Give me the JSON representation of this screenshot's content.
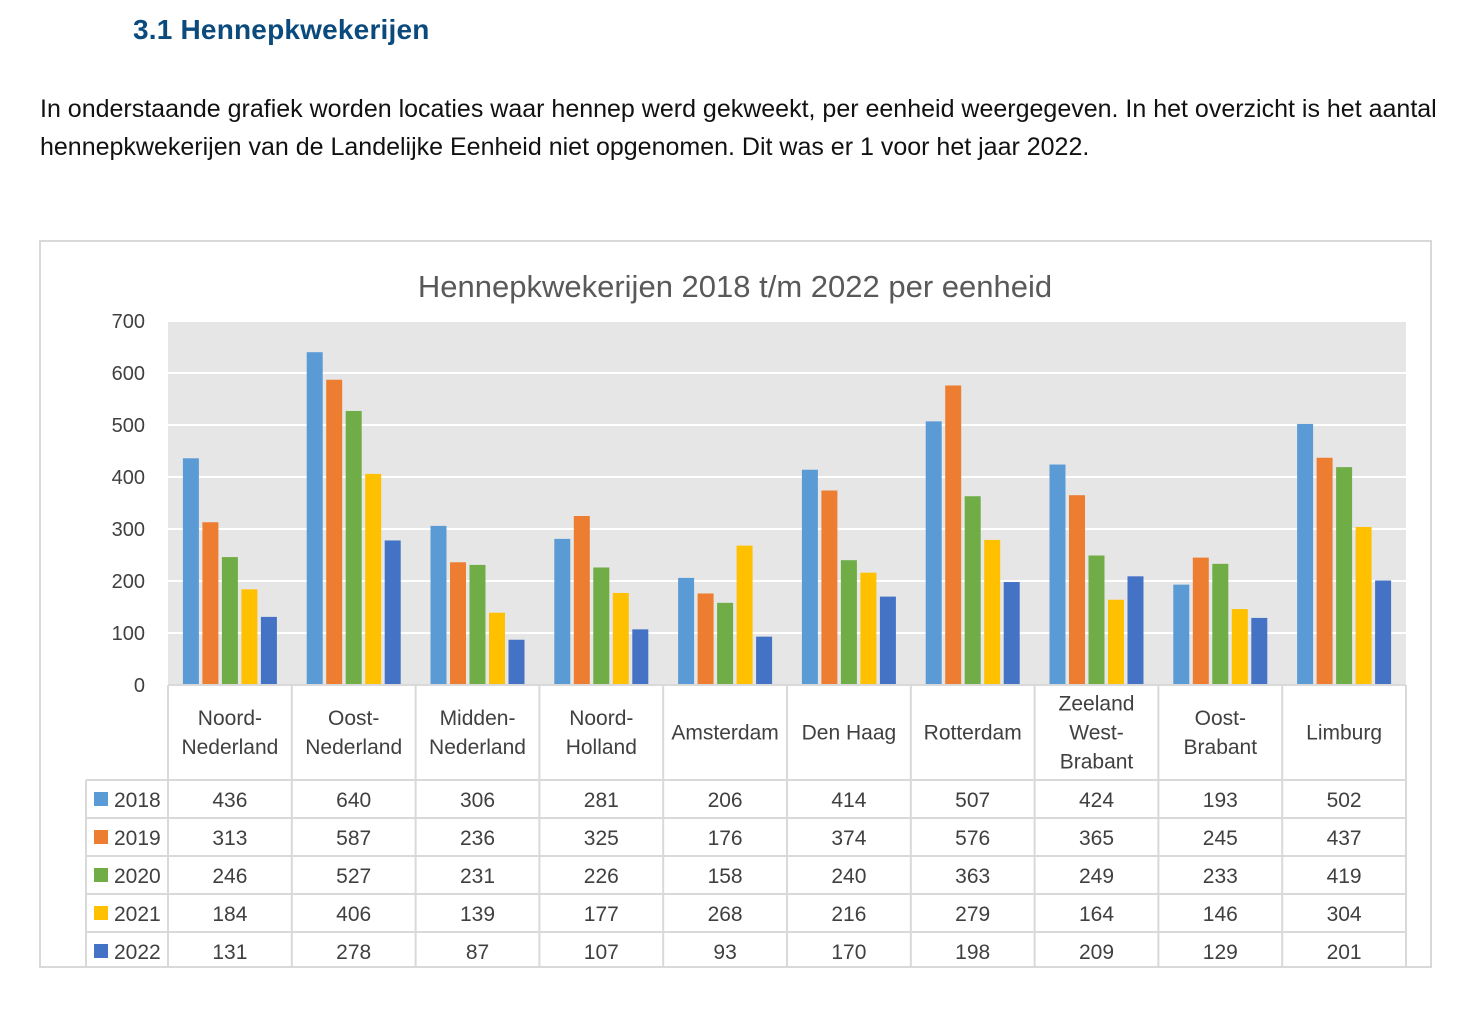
{
  "heading": "3.1 Hennepkwekerijen",
  "intro": "In onderstaande grafiek worden locaties waar hennep werd gekweekt, per eenheid weergegeven. In het overzicht is het aantal hennepkwekerijen van de Landelijke Eenheid niet opgenomen. Dit was er 1 voor het jaar 2022.",
  "chart_data": {
    "type": "bar",
    "title": "Hennepkwekerijen 2018 t/m 2022 per eenheid",
    "xlabel": "",
    "ylabel": "",
    "ylim": [
      0,
      700
    ],
    "yticks": [
      0,
      100,
      200,
      300,
      400,
      500,
      600,
      700
    ],
    "grid": true,
    "legend": "data-table",
    "categories": [
      [
        "Noord-",
        "Nederland"
      ],
      [
        "Oost-",
        "Nederland"
      ],
      [
        "Midden-",
        "Nederland"
      ],
      [
        "Noord-",
        "Holland"
      ],
      [
        "Amsterdam"
      ],
      [
        "Den Haag"
      ],
      [
        "Rotterdam"
      ],
      [
        "Zeeland",
        "West-",
        "Brabant"
      ],
      [
        "Oost-",
        "Brabant"
      ],
      [
        "Limburg"
      ]
    ],
    "series": [
      {
        "name": "2018",
        "color": "#5b9bd5",
        "values": [
          436,
          640,
          306,
          281,
          206,
          414,
          507,
          424,
          193,
          502
        ]
      },
      {
        "name": "2019",
        "color": "#ed7d31",
        "values": [
          313,
          587,
          236,
          325,
          176,
          374,
          576,
          365,
          245,
          437
        ]
      },
      {
        "name": "2020",
        "color": "#70ad47",
        "values": [
          246,
          527,
          231,
          226,
          158,
          240,
          363,
          249,
          233,
          419
        ]
      },
      {
        "name": "2021",
        "color": "#ffc000",
        "values": [
          184,
          406,
          139,
          177,
          268,
          216,
          279,
          164,
          146,
          304
        ]
      },
      {
        "name": "2022",
        "color": "#4472c4",
        "values": [
          131,
          278,
          87,
          107,
          93,
          170,
          198,
          209,
          129,
          201
        ]
      }
    ]
  }
}
